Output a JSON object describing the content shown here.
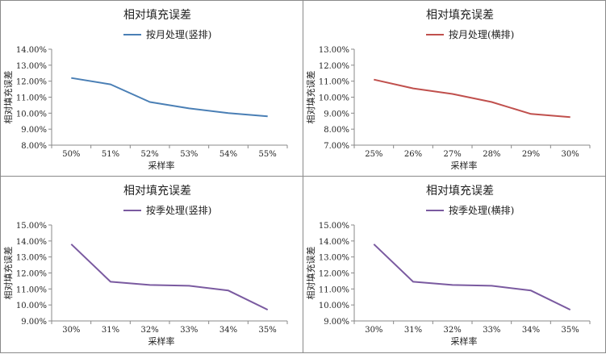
{
  "chart_data": [
    {
      "type": "line",
      "title": "相对填充误差",
      "series": [
        {
          "name": "按月处理(竖排)",
          "color": "#4a7fb5",
          "values": [
            12.2,
            11.8,
            10.7,
            10.3,
            10.0,
            9.8
          ]
        }
      ],
      "categories": [
        "50%",
        "51%",
        "52%",
        "53%",
        "54%",
        "55%"
      ],
      "xlabel": "采样率",
      "ylabel": "相对填充误差",
      "ylim": [
        8,
        14
      ],
      "yticks": [
        "8.00%",
        "9.00%",
        "10.00%",
        "11.00%",
        "12.00%",
        "13.00%",
        "14.00%"
      ],
      "legend": "top-center",
      "grid": false
    },
    {
      "type": "line",
      "title": "相对填充误差",
      "series": [
        {
          "name": "按月处理(横排)",
          "color": "#c0504d",
          "values": [
            11.1,
            10.55,
            10.2,
            9.7,
            8.95,
            8.75
          ]
        }
      ],
      "categories": [
        "25%",
        "26%",
        "27%",
        "28%",
        "29%",
        "30%"
      ],
      "xlabel": "采样率",
      "ylabel": "相对填充误差",
      "ylim": [
        7,
        13
      ],
      "yticks": [
        "7.00%",
        "8.00%",
        "9.00%",
        "10.00%",
        "11.00%",
        "12.00%",
        "13.00%"
      ],
      "legend": "top-center",
      "grid": false
    },
    {
      "type": "line",
      "title": "相对填充误差",
      "series": [
        {
          "name": "按季处理(竖排)",
          "color": "#7a5aa0",
          "values": [
            13.8,
            11.45,
            11.25,
            11.2,
            10.9,
            9.7
          ]
        }
      ],
      "categories": [
        "30%",
        "31%",
        "32%",
        "33%",
        "34%",
        "35%"
      ],
      "xlabel": "采样率",
      "ylabel": "相对填充误差",
      "ylim": [
        9,
        15
      ],
      "yticks": [
        "9.00%",
        "10.00%",
        "11.00%",
        "12.00%",
        "13.00%",
        "14.00%",
        "15.00%"
      ],
      "legend": "top-center",
      "grid": false
    },
    {
      "type": "line",
      "title": "相对填充误差",
      "series": [
        {
          "name": "按季处理(横排)",
          "color": "#7a5aa0",
          "values": [
            13.8,
            11.45,
            11.25,
            11.2,
            10.9,
            9.7
          ]
        }
      ],
      "categories": [
        "30%",
        "31%",
        "32%",
        "33%",
        "34%",
        "35%"
      ],
      "xlabel": "采样率",
      "ylabel": "相对填充误差",
      "ylim": [
        9,
        15
      ],
      "yticks": [
        "9.00%",
        "10.00%",
        "11.00%",
        "12.00%",
        "13.00%",
        "14.00%",
        "15.00%"
      ],
      "legend": "top-center",
      "grid": false
    }
  ]
}
